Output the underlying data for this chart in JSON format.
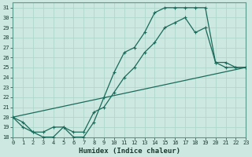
{
  "xlabel": "Humidex (Indice chaleur)",
  "bg_color": "#cce8e0",
  "line_color": "#1a6b5a",
  "grid_color": "#b0d8cc",
  "xlim": [
    0,
    23
  ],
  "ylim": [
    18,
    31.5
  ],
  "yticks": [
    18,
    19,
    20,
    21,
    22,
    23,
    24,
    25,
    26,
    27,
    28,
    29,
    30,
    31
  ],
  "xticks": [
    0,
    1,
    2,
    3,
    4,
    5,
    6,
    7,
    8,
    9,
    10,
    11,
    12,
    13,
    14,
    15,
    16,
    17,
    18,
    19,
    20,
    21,
    22,
    23
  ],
  "line1_x": [
    0,
    1,
    2,
    3,
    4,
    5,
    6,
    7,
    8,
    9,
    10,
    11,
    12,
    13,
    14,
    15,
    16,
    17,
    18,
    19,
    20,
    21,
    22,
    23
  ],
  "line1_y": [
    20.0,
    19.0,
    18.5,
    18.0,
    18.0,
    19.0,
    18.0,
    18.0,
    19.5,
    22.0,
    24.5,
    26.5,
    27.0,
    28.5,
    30.5,
    31.0,
    31.0,
    31.0,
    31.0,
    31.0,
    25.5,
    25.0,
    25.0,
    25.0
  ],
  "line2_x": [
    0,
    1,
    2,
    3,
    4,
    5,
    6,
    7,
    8,
    9,
    10,
    11,
    12,
    13,
    14,
    15,
    16,
    17,
    18,
    19,
    20,
    21,
    22,
    23
  ],
  "line2_y": [
    20.0,
    19.5,
    18.5,
    18.5,
    19.0,
    19.0,
    18.5,
    18.5,
    20.5,
    21.0,
    22.5,
    24.0,
    25.0,
    26.5,
    27.5,
    29.0,
    29.5,
    30.0,
    28.5,
    29.0,
    25.5,
    25.5,
    25.0,
    25.0
  ],
  "line3_x": [
    0,
    23
  ],
  "line3_y": [
    20.0,
    25.0
  ]
}
